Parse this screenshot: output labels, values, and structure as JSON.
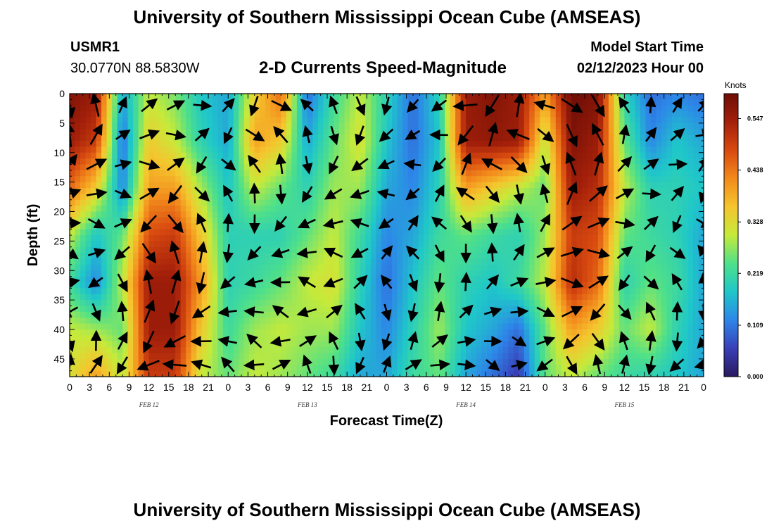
{
  "header": {
    "title_top": "University of Southern Mississippi Ocean Cube (AMSEAS)",
    "title_bottom": "University of Southern Mississippi Ocean Cube (AMSEAS)",
    "station": "USMR1",
    "coordinates": "30.0770N  88.5830W",
    "chart_title": "2-D Currents Speed-Magnitude",
    "model_start_label": "Model Start Time",
    "model_start_value": "02/12/2023 Hour 00"
  },
  "colors": {
    "scale": [
      "#2a1a5e",
      "#3a3fb8",
      "#2d86e8",
      "#1fc7c9",
      "#4fe089",
      "#c6ea3a",
      "#f5c52e",
      "#f28a1c",
      "#d84a10",
      "#a4200a",
      "#6e0e06"
    ]
  },
  "chart_data": {
    "type": "heatmap",
    "title": "2-D Currents Speed-Magnitude",
    "xlabel": "Forecast Time(Z)",
    "ylabel": "Depth (ft)",
    "x_tick_labels": [
      "0",
      "3",
      "6",
      "9",
      "12",
      "15",
      "18",
      "21",
      "0",
      "3",
      "6",
      "9",
      "12",
      "15",
      "18",
      "21",
      "0",
      "3",
      "6",
      "9",
      "12",
      "15",
      "18",
      "21",
      "0",
      "3",
      "6",
      "9",
      "12",
      "15",
      "18",
      "21",
      "0"
    ],
    "x_range_hours": [
      0,
      96
    ],
    "date_labels": [
      {
        "label": "FEB 12",
        "hour": 12
      },
      {
        "label": "FEB 13",
        "hour": 36
      },
      {
        "label": "FEB 14",
        "hour": 60
      },
      {
        "label": "FEB 15",
        "hour": 84
      }
    ],
    "y_tick_labels": [
      "0",
      "5",
      "10",
      "15",
      "20",
      "25",
      "30",
      "35",
      "40",
      "45"
    ],
    "y_range_ft": [
      0,
      48
    ],
    "colorbar": {
      "unit": "Knots",
      "labels": [
        "0.547",
        "0.438",
        "0.328",
        "0.219",
        "0.109",
        "0.000"
      ],
      "range": [
        0,
        0.6
      ]
    },
    "depths_ft": [
      0,
      8,
      16,
      24,
      32,
      40,
      48
    ],
    "speed_profile_hours": [
      0,
      4,
      8,
      12,
      16,
      20,
      24,
      28,
      32,
      36,
      40,
      44,
      48,
      52,
      56,
      60,
      64,
      68,
      72,
      76,
      80,
      84,
      88,
      92,
      96
    ],
    "speed_knots": [
      [
        0.58,
        0.55,
        0.15,
        0.3,
        0.26,
        0.18,
        0.15,
        0.34,
        0.45,
        0.1,
        0.22,
        0.3,
        0.2,
        0.1,
        0.2,
        0.55,
        0.58,
        0.55,
        0.4,
        0.6,
        0.58,
        0.2,
        0.1,
        0.12,
        0.1
      ],
      [
        0.55,
        0.5,
        0.1,
        0.35,
        0.3,
        0.2,
        0.15,
        0.4,
        0.35,
        0.15,
        0.25,
        0.32,
        0.18,
        0.1,
        0.18,
        0.55,
        0.56,
        0.55,
        0.3,
        0.58,
        0.55,
        0.25,
        0.12,
        0.18,
        0.15
      ],
      [
        0.45,
        0.35,
        0.12,
        0.4,
        0.4,
        0.28,
        0.18,
        0.3,
        0.25,
        0.2,
        0.28,
        0.28,
        0.15,
        0.12,
        0.2,
        0.4,
        0.35,
        0.3,
        0.25,
        0.55,
        0.52,
        0.3,
        0.2,
        0.2,
        0.18
      ],
      [
        0.3,
        0.18,
        0.25,
        0.48,
        0.5,
        0.35,
        0.2,
        0.2,
        0.2,
        0.25,
        0.3,
        0.22,
        0.12,
        0.15,
        0.22,
        0.25,
        0.22,
        0.2,
        0.28,
        0.5,
        0.48,
        0.25,
        0.22,
        0.2,
        0.15
      ],
      [
        0.22,
        0.12,
        0.3,
        0.55,
        0.55,
        0.4,
        0.2,
        0.22,
        0.25,
        0.3,
        0.32,
        0.2,
        0.1,
        0.18,
        0.25,
        0.2,
        0.18,
        0.22,
        0.3,
        0.52,
        0.45,
        0.2,
        0.25,
        0.22,
        0.15
      ],
      [
        0.3,
        0.28,
        0.25,
        0.55,
        0.55,
        0.35,
        0.22,
        0.28,
        0.3,
        0.28,
        0.28,
        0.18,
        0.12,
        0.2,
        0.28,
        0.18,
        0.15,
        0.1,
        0.25,
        0.4,
        0.35,
        0.25,
        0.3,
        0.2,
        0.15
      ],
      [
        0.32,
        0.4,
        0.3,
        0.5,
        0.5,
        0.3,
        0.25,
        0.3,
        0.28,
        0.25,
        0.22,
        0.15,
        0.15,
        0.22,
        0.25,
        0.15,
        0.1,
        0.05,
        0.25,
        0.3,
        0.25,
        0.22,
        0.2,
        0.18,
        0.15
      ]
    ],
    "vectors": {
      "x_hours": [
        0,
        4,
        8,
        12,
        16,
        20,
        24,
        28,
        32,
        36,
        40,
        44,
        48,
        52,
        56,
        60,
        64,
        68,
        72,
        76,
        80,
        84,
        88,
        92,
        96
      ],
      "depths_ft": [
        2,
        7,
        12,
        17,
        22,
        27,
        32,
        37,
        42,
        46
      ],
      "direction_deg_pattern": [
        170,
        330,
        350,
        0,
        355,
        10,
        300,
        80,
        340,
        160
      ]
    }
  }
}
